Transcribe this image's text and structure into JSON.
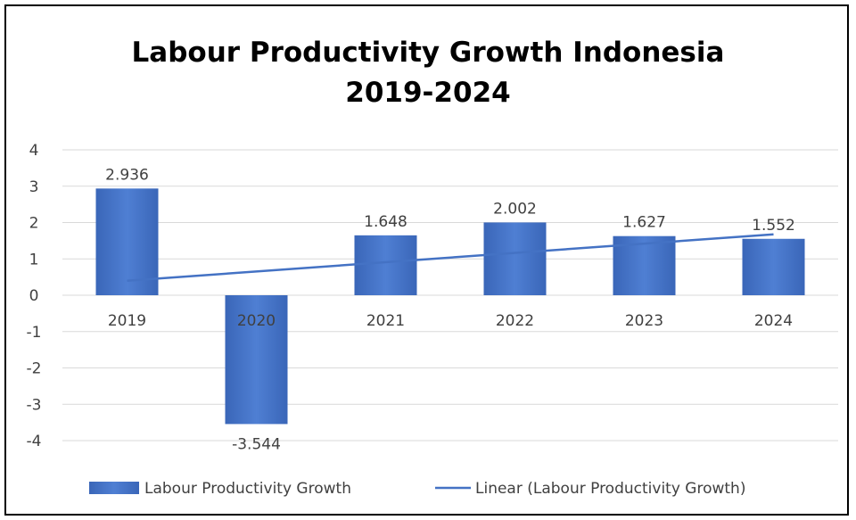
{
  "chart_data": {
    "type": "bar",
    "title_line1": "Labour Productivity  Growth Indonesia",
    "title_line2": "2019-2024",
    "categories": [
      "2019",
      "2020",
      "2021",
      "2022",
      "2023",
      "2024"
    ],
    "series": [
      {
        "name": "Labour Productivity Growth",
        "values": [
          2.936,
          -3.544,
          1.648,
          2.002,
          1.627,
          1.552
        ],
        "labels": [
          "2.936",
          "-3.544",
          "1.648",
          "2.002",
          "1.627",
          "1.552"
        ],
        "color": "#4472C4"
      }
    ],
    "trendline": {
      "name": "Linear (Labour Productivity Growth)",
      "type": "linear",
      "color": "#4472C4"
    },
    "yticks": [
      "4",
      "3",
      "2",
      "1",
      "0",
      "-1",
      "-2",
      "-3",
      "-4"
    ],
    "ylim": [
      -4,
      4
    ],
    "grid": true,
    "legend_position": "bottom"
  }
}
